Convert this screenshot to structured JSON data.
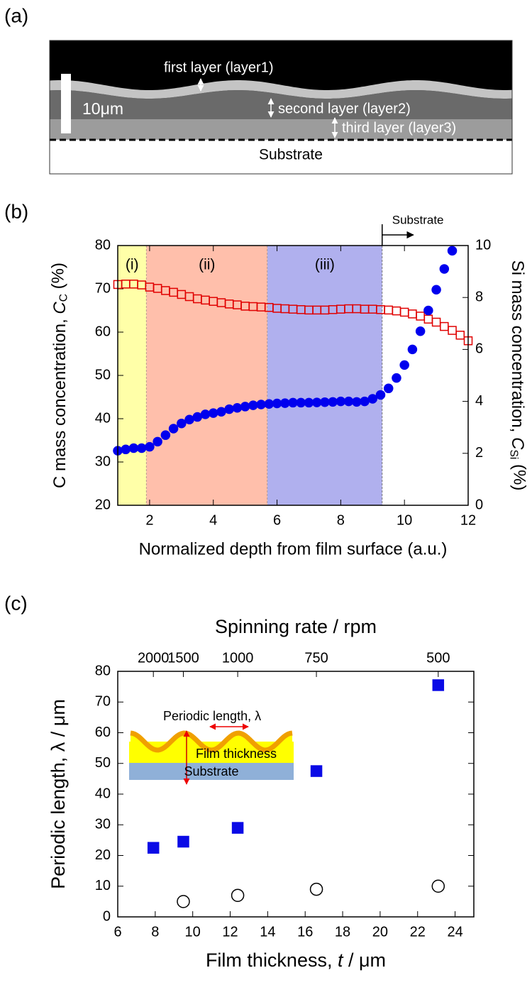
{
  "panel_labels": [
    "(a)",
    "(b)",
    "(c)"
  ],
  "micrograph": {
    "layer_labels": [
      "first layer (layer1)",
      "second layer (layer2)",
      "third layer (layer3)"
    ],
    "scale_bar": "10μm",
    "substrate": "Substrate"
  },
  "chart_data": [
    {
      "type": "scatter",
      "xlabel": "Normalized depth from film surface (a.u.)",
      "ylabel": {
        "text": "C mass concentration, ",
        "symbol": "C",
        "subscript": "C",
        "unit": " (%)"
      },
      "y2label": {
        "text": "Si mass concentration, ",
        "symbol": "C",
        "subscript": "Si",
        "unit": " (%)"
      },
      "xlim": [
        1,
        12
      ],
      "xticks": [
        2,
        4,
        6,
        8,
        10,
        12
      ],
      "ylim": [
        20,
        80
      ],
      "yticks": [
        20,
        30,
        40,
        50,
        60,
        70,
        80
      ],
      "y2lim": [
        0,
        10
      ],
      "y2ticks": [
        0,
        2,
        4,
        6,
        8,
        10
      ],
      "regions": [
        {
          "label": "(i)",
          "start": 1,
          "end": 1.9,
          "color": "#ffffa8"
        },
        {
          "label": "(ii)",
          "start": 1.9,
          "end": 5.7,
          "color": "#ffbfab"
        },
        {
          "label": "(iii)",
          "start": 5.7,
          "end": 9.3,
          "color": "#b0b0ee"
        }
      ],
      "substrate_marker": {
        "label": "Substrate",
        "x": 9.3
      },
      "x": [
        1,
        1.25,
        1.5,
        1.75,
        2,
        2.25,
        2.5,
        2.75,
        3,
        3.25,
        3.5,
        3.75,
        4,
        4.25,
        4.5,
        4.75,
        5,
        5.25,
        5.5,
        5.75,
        6,
        6.25,
        6.5,
        6.75,
        7,
        7.25,
        7.5,
        7.75,
        8,
        8.25,
        8.5,
        8.75,
        9,
        9.25,
        9.5,
        9.75,
        10,
        10.25,
        10.5,
        10.75,
        11,
        11.25,
        11.5,
        11.75,
        12
      ],
      "series": [
        {
          "color": "#e00000",
          "marker": "square",
          "filled": false,
          "values": [
            71,
            71.1,
            71.1,
            70.9,
            70.4,
            70.1,
            69.6,
            69.2,
            68.7,
            68.2,
            67.7,
            67.4,
            67.1,
            66.8,
            66.5,
            66.3,
            66.0,
            65.9,
            65.8,
            65.7,
            65.5,
            65.4,
            65.3,
            65.2,
            65.1,
            65.1,
            65.1,
            65.2,
            65.3,
            65.4,
            65.4,
            65.3,
            65.3,
            65.2,
            65.1,
            64.9,
            64.6,
            64.2,
            63.7,
            63.0,
            62.3,
            61.3,
            60.4,
            59.3,
            58.0
          ]
        },
        {
          "color": "#0000ee",
          "marker": "circle",
          "filled": true,
          "axis": "y2",
          "values": [
            2.1,
            2.15,
            2.2,
            2.2,
            2.25,
            2.45,
            2.7,
            2.95,
            3.15,
            3.3,
            3.4,
            3.5,
            3.55,
            3.6,
            3.7,
            3.75,
            3.8,
            3.85,
            3.88,
            3.9,
            3.92,
            3.93,
            3.95,
            3.95,
            3.95,
            3.96,
            3.97,
            3.98,
            4.0,
            4.0,
            3.98,
            4.0,
            4.1,
            4.25,
            4.5,
            4.9,
            5.4,
            6.0,
            6.7,
            7.5,
            8.3,
            9.1,
            9.8,
            null,
            null
          ]
        }
      ]
    },
    {
      "type": "scatter",
      "xlabel": {
        "text": "Film thickness, ",
        "symbol": "t",
        "unit": " / μm"
      },
      "ylabel": "Periodic length, λ / μm",
      "xlim": [
        6,
        25
      ],
      "xticks": [
        6,
        8,
        10,
        12,
        14,
        16,
        18,
        20,
        22,
        24
      ],
      "ylim": [
        0,
        80
      ],
      "yticks": [
        0,
        10,
        20,
        30,
        40,
        50,
        60,
        70,
        80
      ],
      "top_axis": {
        "label": "Spinning rate / rpm",
        "ticks": [
          2000,
          1500,
          1000,
          750,
          500
        ],
        "tick_x": [
          7.9,
          9.5,
          12.4,
          16.6,
          23.1
        ]
      },
      "series": [
        {
          "color": "#0a0ae6",
          "marker": "square",
          "filled": true,
          "x": [
            7.9,
            9.5,
            12.4,
            16.6,
            23.1
          ],
          "values": [
            22.5,
            24.5,
            29,
            47.5,
            75.5
          ]
        },
        {
          "color": "#000000",
          "marker": "circle",
          "filled": false,
          "x": [
            9.5,
            12.4,
            16.6,
            23.1
          ],
          "values": [
            5,
            7,
            9,
            10
          ]
        }
      ],
      "inset": {
        "periodic_label": "Periodic length, λ",
        "thickness_label": "Film thickness",
        "substrate_label": "Substrate"
      }
    }
  ]
}
